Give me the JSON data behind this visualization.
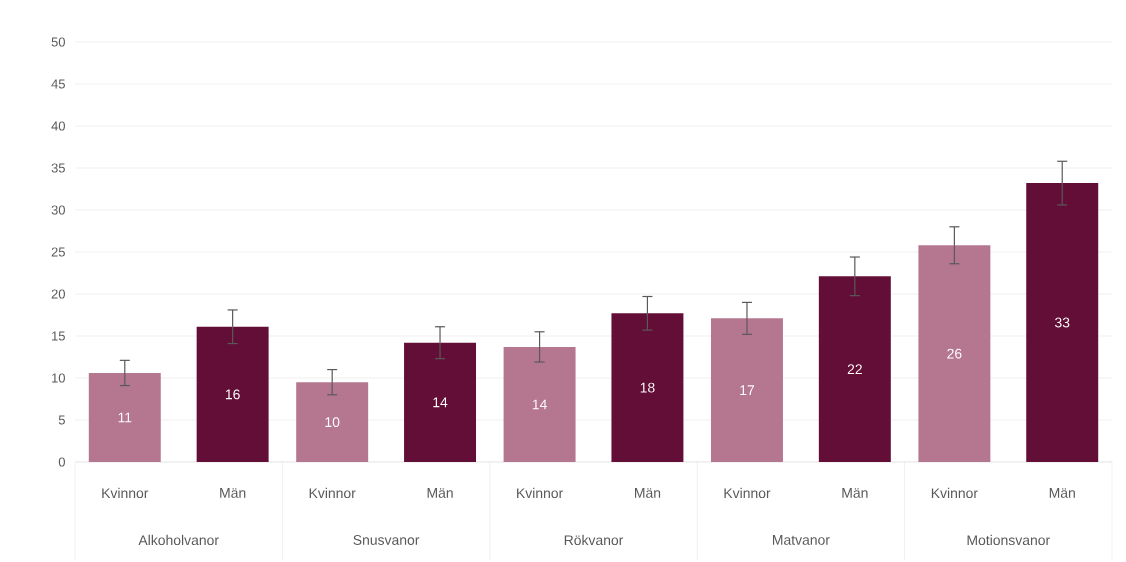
{
  "chart_data": {
    "type": "bar",
    "categories": [
      "Alkoholvanor",
      "Snusvanor",
      "Rökvanor",
      "Matvanor",
      "Motionsvanor"
    ],
    "series": [
      {
        "name": "Kvinnor",
        "color": "#b5778f",
        "values": [
          10.6,
          9.5,
          13.7,
          17.1,
          25.8
        ],
        "errors": [
          1.5,
          1.5,
          1.8,
          1.9,
          2.2
        ],
        "value_labels": [
          "11",
          "10",
          "14",
          "17",
          "26"
        ]
      },
      {
        "name": "Män",
        "color": "#630e36",
        "values": [
          16.1,
          14.2,
          17.7,
          22.1,
          33.2
        ],
        "errors": [
          2.0,
          1.9,
          2.0,
          2.3,
          2.6
        ],
        "value_labels": [
          "16",
          "14",
          "18",
          "22",
          "33"
        ]
      }
    ],
    "ylim": [
      0,
      50
    ],
    "yticks": [
      0,
      5,
      10,
      15,
      20,
      25,
      30,
      35,
      40,
      45,
      50
    ],
    "grid": "y"
  }
}
